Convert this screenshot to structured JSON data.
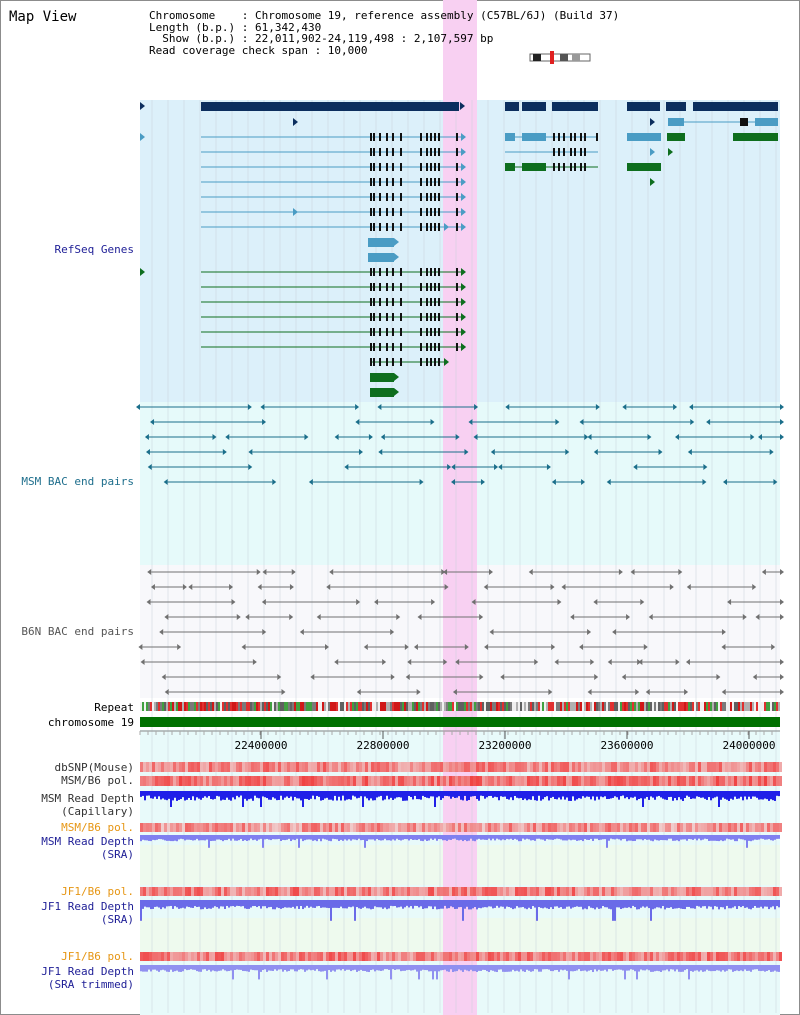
{
  "title": "Map View",
  "info": {
    "line_chromosome": "Chromosome    : Chromosome 19, reference assembly (C57BL/6J) (Build 37)",
    "line_length": "Length (b.p.) : 61,342,430",
    "line_show": "  Show (b.p.) : 22,011,902-24,119,498 : 2,107,597 bp",
    "line_span": "Read coverage check span : 10,000"
  },
  "tracks": {
    "refseq": "RefSeq Genes",
    "msm_bac": "MSM BAC end pairs",
    "b6n_bac": "B6N BAC end pairs",
    "repeat": "Repeat",
    "chromosome": "chromosome 19",
    "dbsnp": "dbSNP(Mouse)",
    "msm_b6_pol_1": "MSM/B6 pol.",
    "msm_depth_cap_1": "MSM Read Depth",
    "msm_depth_cap_2": "(Capillary)",
    "msm_b6_pol_2": "MSM/B6 pol.",
    "msm_depth_sra_1": "MSM Read Depth",
    "msm_depth_sra_2": "(SRA)",
    "jf1_pol_1": "JF1/B6 pol.",
    "jf1_depth_sra_1": "JF1 Read Depth",
    "jf1_depth_sra_2": "(SRA)",
    "jf1_pol_2": "JF1/B6 pol.",
    "jf1_depth_trim_1": "JF1 Read Depth",
    "jf1_depth_trim_2": "(SRA trimmed)"
  },
  "axis_ticks": [
    "22400000",
    "22800000",
    "23200000",
    "23600000",
    "24000000"
  ],
  "colors": {
    "refseq_bg": "#dcf0fa",
    "bac_bg": "#e6fafa",
    "b6n_bg": "#f8f8fb",
    "highlight": "#f8d0f2",
    "gene_navy": "#0c2e5e",
    "gene_blue": "#4a9cc4",
    "gene_green": "#0e6e1e",
    "msm_pair": "#1a6e8a",
    "b6n_pair": "#707070",
    "chrom_green": "#007000",
    "depth_blue_dark": "#2020e8",
    "depth_blue_light": "#8080f0",
    "label_navy": "#1e1e96",
    "label_teal": "#1e6e8c",
    "label_orange": "#e69614"
  }
}
